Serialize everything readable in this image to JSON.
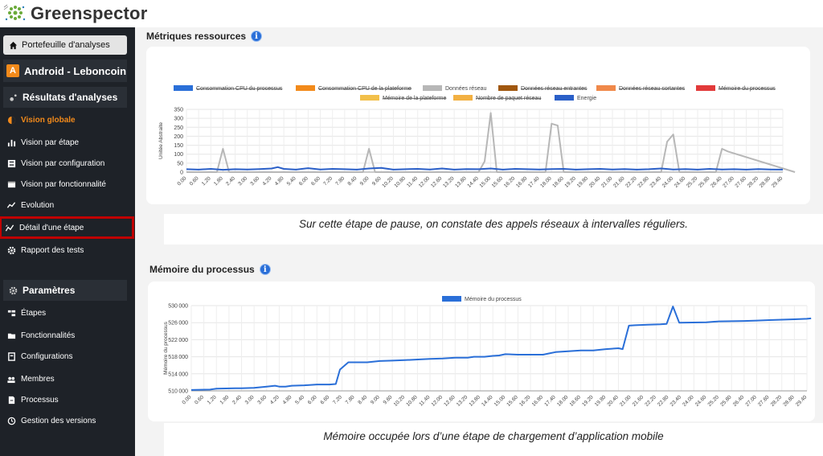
{
  "app": {
    "brand": "Greenspector"
  },
  "sidebar": {
    "portfolio_label": "Portefeuille d'analyses",
    "app_badge": "A",
    "app_name": "Android - Leboncoin",
    "results_section": "Résultats d'analyses",
    "results_items": [
      {
        "label": "Vision globale",
        "icon": "half-circle-icon"
      },
      {
        "label": "Vision par étape",
        "icon": "bar-chart-icon"
      },
      {
        "label": "Vision par configuration",
        "icon": "sliders-icon"
      },
      {
        "label": "Vision par fonctionnalité",
        "icon": "window-icon"
      },
      {
        "label": "Evolution",
        "icon": "trend-icon"
      },
      {
        "label": "Détail d'une étape",
        "icon": "detail-chart-icon"
      },
      {
        "label": "Rapport des tests",
        "icon": "gear-icon"
      }
    ],
    "settings_section": "Paramètres",
    "settings_items": [
      {
        "label": "Étapes",
        "icon": "steps-icon"
      },
      {
        "label": "Fonctionnalités",
        "icon": "folder-icon"
      },
      {
        "label": "Configurations",
        "icon": "config-icon"
      },
      {
        "label": "Membres",
        "icon": "users-icon"
      },
      {
        "label": "Processus",
        "icon": "file-icon"
      },
      {
        "label": "Gestion des versions",
        "icon": "versions-icon"
      }
    ]
  },
  "section1": {
    "title": "Métriques ressources",
    "caption": "Sur cette étape de pause, on constate des appels réseaux à intervalles réguliers."
  },
  "section2": {
    "title": "Mémoire du processus",
    "caption": "Mémoire occupée lors d’une étape de chargement d’application mobile"
  },
  "chart_data": [
    {
      "type": "line",
      "ylabel": "Unitée Abstraite",
      "ylim": [
        0,
        350
      ],
      "yticks": [
        0,
        50,
        100,
        150,
        200,
        250,
        300,
        350
      ],
      "grid": true,
      "legend_position": "top",
      "legend": [
        {
          "name": "Consommation CPU du processus",
          "color": "#2a6fd8",
          "hidden": true
        },
        {
          "name": "Consommation CPU de la plateforme",
          "color": "#f28a1b",
          "hidden": true
        },
        {
          "name": "Données réseau",
          "color": "#b7b7b7",
          "hidden": false
        },
        {
          "name": "Données réseau entrantes",
          "color": "#a0570f",
          "hidden": true
        },
        {
          "name": "Données réseau sortantes",
          "color": "#f0894a",
          "hidden": true
        },
        {
          "name": "Mémoire du processus",
          "color": "#e23a3a",
          "hidden": true
        },
        {
          "name": "Mémoire de la plateforme",
          "color": "#f2c04a",
          "hidden": true
        },
        {
          "name": "Nombre de paquet réseau",
          "color": "#f2b042",
          "hidden": true
        },
        {
          "name": "Energie",
          "color": "#2a5fc8",
          "hidden": false
        }
      ],
      "x_ticks": [
        "0.00",
        "0.60",
        "1.20",
        "1.80",
        "2.40",
        "3.00",
        "3.60",
        "4.20",
        "4.80",
        "5.40",
        "6.00",
        "6.60",
        "7.20",
        "7.80",
        "8.40",
        "9.00",
        "9.60",
        "10.20",
        "10.80",
        "11.40",
        "12.00",
        "12.60",
        "13.20",
        "13.80",
        "14.40",
        "15.00",
        "15.60",
        "16.20",
        "16.80",
        "17.40",
        "18.00",
        "18.60",
        "19.20",
        "19.80",
        "20.40",
        "21.00",
        "21.60",
        "22.20",
        "22.80",
        "23.40",
        "24.00",
        "24.60",
        "25.20",
        "25.80",
        "26.40",
        "27.00",
        "27.60",
        "28.20",
        "28.80",
        "29.40"
      ],
      "series": [
        {
          "name": "Données réseau",
          "color": "#b7b7b7",
          "x": [
            0,
            1.5,
            1.8,
            2.1,
            8.7,
            9.0,
            9.3,
            14.4,
            14.7,
            15.0,
            15.3,
            17.7,
            18.0,
            18.3,
            18.6,
            23.4,
            23.7,
            24.0,
            24.3,
            26.1,
            26.4,
            26.7,
            30
          ],
          "y": [
            0,
            0,
            130,
            0,
            0,
            130,
            0,
            0,
            60,
            330,
            0,
            0,
            270,
            260,
            0,
            0,
            170,
            210,
            0,
            0,
            130,
            115,
            0
          ]
        },
        {
          "name": "Energie",
          "color": "#2a5fc8",
          "x": [
            0,
            0.6,
            1.2,
            1.8,
            2.4,
            3.0,
            3.6,
            4.2,
            4.5,
            4.8,
            5.4,
            6.0,
            6.6,
            7.2,
            7.8,
            8.4,
            9.0,
            9.6,
            10.2,
            10.8,
            11.4,
            12.0,
            12.6,
            13.2,
            13.8,
            14.4,
            15.0,
            15.6,
            16.2,
            16.8,
            17.4,
            18.0,
            18.6,
            19.2,
            19.8,
            20.4,
            21.0,
            21.6,
            22.2,
            22.8,
            23.4,
            24.0,
            24.6,
            25.2,
            25.8,
            26.4,
            27.0,
            27.6,
            28.2,
            28.8,
            29.4
          ],
          "y": [
            16,
            14,
            18,
            13,
            16,
            15,
            17,
            20,
            28,
            18,
            14,
            22,
            15,
            18,
            16,
            14,
            20,
            24,
            14,
            16,
            18,
            15,
            20,
            14,
            17,
            16,
            20,
            14,
            18,
            16,
            15,
            17,
            18,
            14,
            16,
            18,
            15,
            17,
            14,
            16,
            20,
            15,
            17,
            14,
            18,
            15,
            16,
            14,
            17,
            15,
            14
          ]
        }
      ]
    },
    {
      "type": "line",
      "ylabel": "Mémoire du processus",
      "ylim": [
        510000,
        530000
      ],
      "yticks": [
        510000,
        514000,
        518000,
        522000,
        526000,
        530000
      ],
      "grid": true,
      "legend_position": "top",
      "legend": [
        {
          "name": "Mémoire du processus",
          "color": "#2a6fd8",
          "hidden": false
        }
      ],
      "x_ticks": [
        "0.00",
        "0.60",
        "1.20",
        "1.80",
        "2.40",
        "3.00",
        "3.60",
        "4.20",
        "4.80",
        "5.40",
        "6.00",
        "6.60",
        "7.20",
        "7.80",
        "8.40",
        "9.00",
        "9.60",
        "10.20",
        "10.80",
        "11.40",
        "12.00",
        "12.60",
        "13.20",
        "13.80",
        "14.40",
        "15.00",
        "15.60",
        "16.20",
        "16.80",
        "17.40",
        "18.00",
        "18.60",
        "19.20",
        "19.80",
        "20.40",
        "21.00",
        "21.60",
        "22.20",
        "22.80",
        "23.40",
        "24.00",
        "24.60",
        "25.20",
        "25.80",
        "26.40",
        "27.00",
        "27.60",
        "28.20",
        "28.80",
        "29.40"
      ],
      "series": [
        {
          "name": "Mémoire du processus",
          "color": "#2a6fd8",
          "x": [
            0,
            0.9,
            1.2,
            2.1,
            2.4,
            3.0,
            3.6,
            4.0,
            4.2,
            4.5,
            4.8,
            5.4,
            6.0,
            6.6,
            6.9,
            7.1,
            7.5,
            8.4,
            9.0,
            9.6,
            10.2,
            11.0,
            11.4,
            12.0,
            12.6,
            13.2,
            13.5,
            14.0,
            14.4,
            14.7,
            15.0,
            15.6,
            16.2,
            16.8,
            17.1,
            17.4,
            18.0,
            18.6,
            19.2,
            19.8,
            20.4,
            20.6,
            20.9,
            21.2,
            21.8,
            22.4,
            22.7,
            23.0,
            23.3,
            24.6,
            25.2,
            26.4,
            27.0,
            27.6,
            28.2,
            28.8,
            29.4,
            29.6
          ],
          "y": [
            510200,
            510300,
            510500,
            510600,
            510600,
            510700,
            511000,
            511200,
            511000,
            511000,
            511200,
            511300,
            511500,
            511500,
            511600,
            515000,
            516700,
            516700,
            517000,
            517100,
            517200,
            517400,
            517500,
            517600,
            517800,
            517800,
            518000,
            518000,
            518200,
            518300,
            518600,
            518500,
            518500,
            518500,
            518800,
            519100,
            519300,
            519500,
            519500,
            519800,
            520000,
            519800,
            525300,
            525400,
            525500,
            525600,
            525700,
            529800,
            526000,
            526100,
            526300,
            526400,
            526500,
            526600,
            526700,
            526800,
            526900,
            527000
          ]
        }
      ]
    }
  ]
}
